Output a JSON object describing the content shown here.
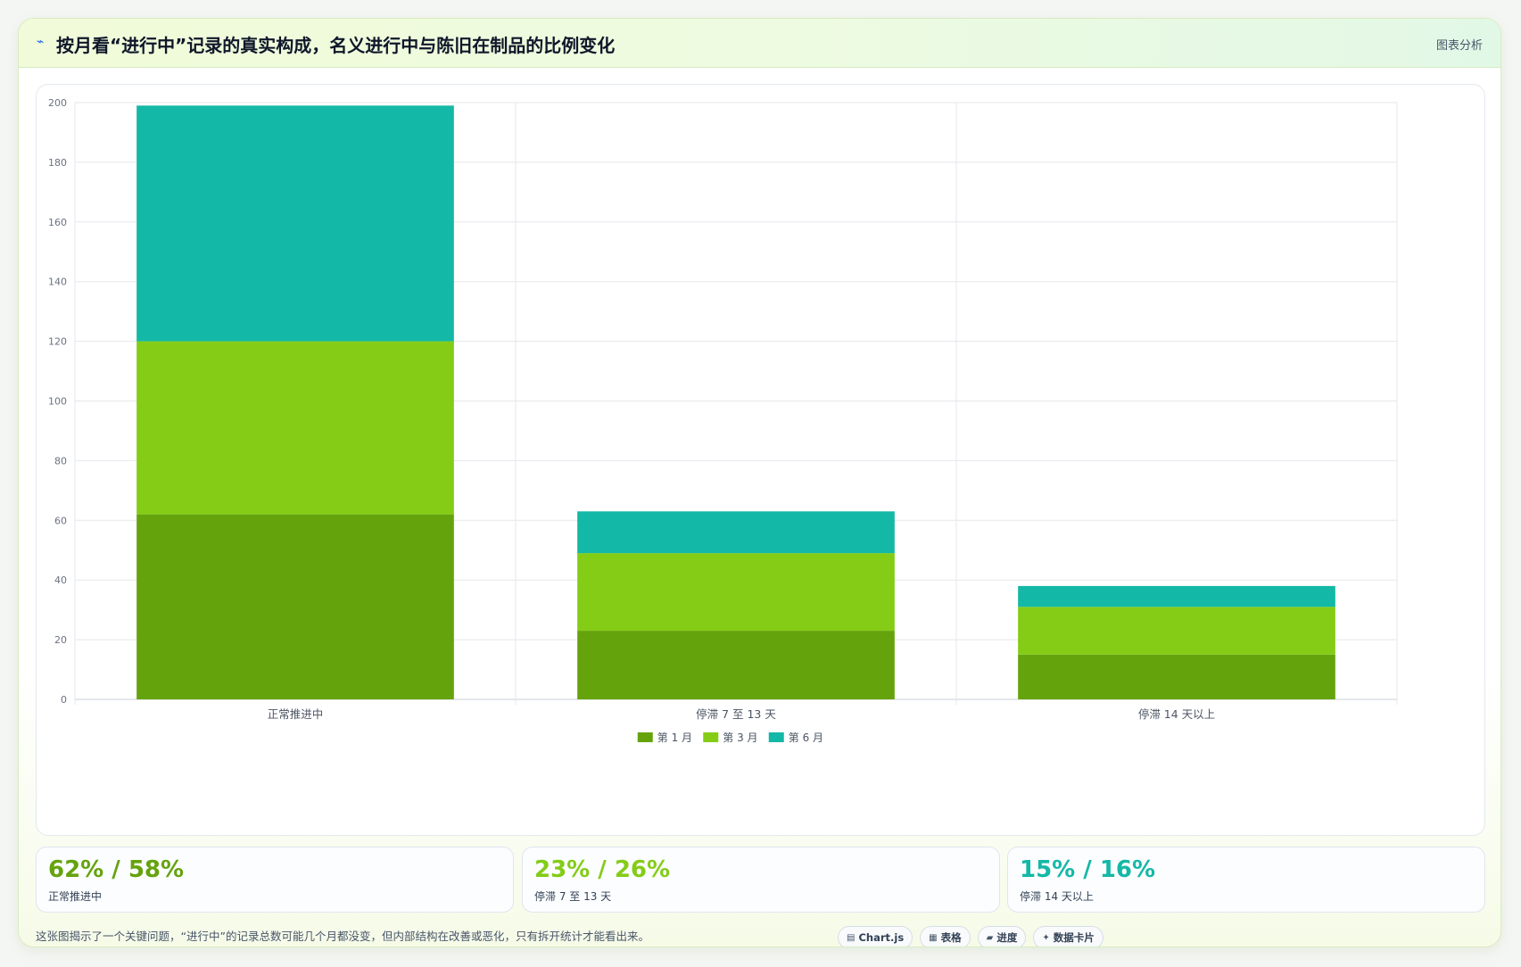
{
  "header": {
    "icon": "trend-line-icon",
    "title": "按月看“进行中”记录的真实构成，名义进行中与陈旧在制品的比例变化",
    "tag": "图表分析"
  },
  "chart_data": {
    "type": "bar",
    "stacked": true,
    "categories": [
      "正常推进中",
      "停滞 7 至 13 天",
      "停滞 14 天以上"
    ],
    "series": [
      {
        "name": "第 1 月",
        "color": "#65a30d",
        "values": [
          62,
          23,
          15
        ]
      },
      {
        "name": "第 3 月",
        "color": "#84cc16",
        "values": [
          58,
          26,
          16
        ]
      },
      {
        "name": "第 6 月",
        "color": "#14b8a6",
        "values": [
          79,
          14,
          7
        ]
      }
    ],
    "ylim": [
      0,
      200
    ],
    "yticks": [
      0,
      20,
      40,
      60,
      80,
      100,
      120,
      140,
      160,
      180,
      200
    ],
    "grid": true,
    "legend": "bottom"
  },
  "stats": [
    {
      "value": "62% / 58%",
      "label": "正常推进中",
      "color": "#65a30d"
    },
    {
      "value": "23% / 26%",
      "label": "停滞 7 至 13 天",
      "color": "#84cc16"
    },
    {
      "value": "15% / 16%",
      "label": "停滞 14 天以上",
      "color": "#14b8a6"
    }
  ],
  "footer": {
    "note": "这张图揭示了一个关键问题，“进行中”的记录总数可能几个月都没变，但内部结构在改善或恶化，只有拆开统计才能看出来。",
    "pills": [
      {
        "icon": "chart-icon",
        "glyph": "▤",
        "label": "Chart.js"
      },
      {
        "icon": "table-icon",
        "glyph": "▦",
        "label": "表格"
      },
      {
        "icon": "progress-icon",
        "glyph": "▰",
        "label": "进度"
      },
      {
        "icon": "card-icon",
        "glyph": "✦",
        "label": "数据卡片"
      }
    ]
  }
}
